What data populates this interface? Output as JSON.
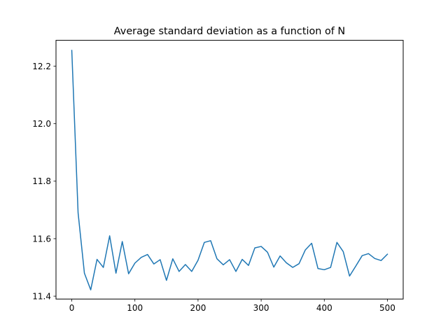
{
  "chart_data": {
    "type": "line",
    "title": "Average standard deviation as a function of N",
    "xlabel": "",
    "ylabel": "",
    "xlim": [
      -25,
      525
    ],
    "ylim": [
      11.39,
      12.29
    ],
    "x_ticks": [
      0,
      100,
      200,
      300,
      400,
      500
    ],
    "x_tick_labels": [
      "0",
      "100",
      "200",
      "300",
      "400",
      "500"
    ],
    "y_ticks": [
      11.4,
      11.6,
      11.8,
      12.0,
      12.2
    ],
    "y_tick_labels": [
      "11.4",
      "11.6",
      "11.8",
      "12.0",
      "12.2"
    ],
    "grid": false,
    "legend": false,
    "colors": {
      "line": "#1f77b4",
      "axes": "#000000",
      "background": "#ffffff"
    },
    "series": [
      {
        "x": [
          0,
          10,
          20,
          30,
          40,
          50,
          60,
          70,
          80,
          90,
          100,
          110,
          120,
          130,
          140,
          150,
          160,
          170,
          180,
          190,
          200,
          210,
          220,
          230,
          240,
          250,
          260,
          270,
          280,
          290,
          300,
          310,
          320,
          330,
          340,
          350,
          360,
          370,
          380,
          390,
          400,
          410,
          420,
          430,
          440,
          450,
          460,
          470,
          480,
          490,
          500
        ],
        "values": [
          12.255,
          11.69,
          11.48,
          11.422,
          11.528,
          11.5,
          11.61,
          11.48,
          11.59,
          11.478,
          11.515,
          11.535,
          11.545,
          11.512,
          11.527,
          11.455,
          11.53,
          11.486,
          11.51,
          11.486,
          11.525,
          11.587,
          11.593,
          11.53,
          11.509,
          11.527,
          11.486,
          11.528,
          11.507,
          11.568,
          11.573,
          11.553,
          11.501,
          11.54,
          11.516,
          11.5,
          11.513,
          11.561,
          11.584,
          11.496,
          11.492,
          11.5,
          11.587,
          11.555,
          11.47,
          11.505,
          11.541,
          11.548,
          11.531,
          11.524,
          11.546
        ]
      }
    ]
  }
}
